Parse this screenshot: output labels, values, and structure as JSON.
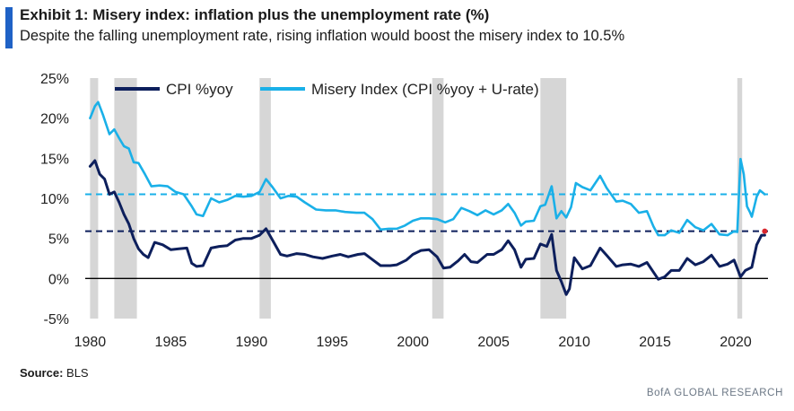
{
  "header": {
    "title": "Exhibit 1: Misery index: inflation plus the unemployment rate (%)",
    "subtitle": "Despite the falling unemployment rate, rising inflation would boost the misery index to 10.5%"
  },
  "footer": {
    "source_label": "Source:",
    "source_value": "BLS",
    "brand": "BofA GLOBAL RESEARCH"
  },
  "colors": {
    "cpi": "#0d1f5c",
    "misery": "#1ab0e8",
    "recession": "#d6d6d6",
    "accent": "#1f62c6",
    "endpoint": "#d9272e"
  },
  "chart_data": {
    "type": "line",
    "title": "Misery index: inflation plus the unemployment rate (%)",
    "xlim": [
      1979.7,
      2022.0
    ],
    "ylim": [
      -5,
      25
    ],
    "x_ticks": [
      1980,
      1985,
      1990,
      1995,
      2000,
      2005,
      2010,
      2015,
      2020
    ],
    "y_ticks": [
      -5,
      0,
      5,
      10,
      15,
      20,
      25
    ],
    "y_tick_labels": [
      "-5%",
      "0%",
      "5%",
      "10%",
      "15%",
      "20%",
      "25%"
    ],
    "legend": {
      "position": "top-left",
      "entries": [
        "CPI %yoy",
        "Misery Index (CPI %yoy + U-rate)"
      ]
    },
    "reference_lines": [
      {
        "y": 10.5,
        "style": "dashed",
        "series": "Misery Index (CPI %yoy + U-rate)"
      },
      {
        "y": 5.9,
        "style": "dashed",
        "series": "CPI %yoy"
      },
      {
        "y": 0,
        "style": "solid"
      }
    ],
    "recessions": [
      [
        1980.0,
        1980.5
      ],
      [
        1981.5,
        1982.9
      ],
      [
        1990.5,
        1991.2
      ],
      [
        2001.2,
        2001.9
      ],
      [
        2007.9,
        2009.5
      ],
      [
        2020.1,
        2020.4
      ]
    ],
    "series": [
      {
        "name": "CPI %yoy",
        "points": [
          [
            1980.0,
            14.0
          ],
          [
            1980.3,
            14.7
          ],
          [
            1980.6,
            13.0
          ],
          [
            1980.9,
            12.4
          ],
          [
            1981.2,
            10.5
          ],
          [
            1981.5,
            10.8
          ],
          [
            1981.8,
            9.5
          ],
          [
            1982.1,
            8.0
          ],
          [
            1982.4,
            6.8
          ],
          [
            1982.7,
            5.0
          ],
          [
            1983.0,
            3.7
          ],
          [
            1983.3,
            3.0
          ],
          [
            1983.6,
            2.6
          ],
          [
            1984.0,
            4.5
          ],
          [
            1984.5,
            4.2
          ],
          [
            1985.0,
            3.6
          ],
          [
            1985.5,
            3.7
          ],
          [
            1986.0,
            3.8
          ],
          [
            1986.3,
            1.9
          ],
          [
            1986.6,
            1.5
          ],
          [
            1987.0,
            1.6
          ],
          [
            1987.5,
            3.8
          ],
          [
            1988.0,
            4.0
          ],
          [
            1988.5,
            4.1
          ],
          [
            1989.0,
            4.8
          ],
          [
            1989.5,
            5.0
          ],
          [
            1990.0,
            5.0
          ],
          [
            1990.5,
            5.4
          ],
          [
            1990.9,
            6.2
          ],
          [
            1991.3,
            4.8
          ],
          [
            1991.8,
            3.0
          ],
          [
            1992.2,
            2.8
          ],
          [
            1992.8,
            3.1
          ],
          [
            1993.3,
            3.0
          ],
          [
            1993.8,
            2.7
          ],
          [
            1994.4,
            2.5
          ],
          [
            1995.0,
            2.8
          ],
          [
            1995.5,
            3.0
          ],
          [
            1996.0,
            2.7
          ],
          [
            1996.6,
            3.0
          ],
          [
            1997.0,
            3.1
          ],
          [
            1997.6,
            2.2
          ],
          [
            1998.0,
            1.6
          ],
          [
            1998.6,
            1.6
          ],
          [
            1999.0,
            1.7
          ],
          [
            1999.6,
            2.3
          ],
          [
            2000.0,
            3.0
          ],
          [
            2000.5,
            3.5
          ],
          [
            2001.0,
            3.6
          ],
          [
            2001.5,
            2.7
          ],
          [
            2001.9,
            1.3
          ],
          [
            2002.3,
            1.4
          ],
          [
            2002.8,
            2.2
          ],
          [
            2003.2,
            3.0
          ],
          [
            2003.6,
            2.1
          ],
          [
            2004.0,
            2.0
          ],
          [
            2004.6,
            3.0
          ],
          [
            2005.0,
            3.0
          ],
          [
            2005.5,
            3.6
          ],
          [
            2005.9,
            4.7
          ],
          [
            2006.3,
            3.6
          ],
          [
            2006.7,
            1.4
          ],
          [
            2007.0,
            2.4
          ],
          [
            2007.5,
            2.5
          ],
          [
            2007.9,
            4.3
          ],
          [
            2008.3,
            4.0
          ],
          [
            2008.6,
            5.5
          ],
          [
            2008.9,
            1.0
          ],
          [
            2009.2,
            -0.4
          ],
          [
            2009.5,
            -2.0
          ],
          [
            2009.7,
            -1.3
          ],
          [
            2010.0,
            2.6
          ],
          [
            2010.5,
            1.2
          ],
          [
            2011.0,
            1.6
          ],
          [
            2011.6,
            3.8
          ],
          [
            2012.0,
            2.9
          ],
          [
            2012.6,
            1.5
          ],
          [
            2013.0,
            1.7
          ],
          [
            2013.5,
            1.8
          ],
          [
            2014.0,
            1.5
          ],
          [
            2014.5,
            2.0
          ],
          [
            2014.9,
            0.8
          ],
          [
            2015.2,
            -0.1
          ],
          [
            2015.6,
            0.2
          ],
          [
            2016.0,
            1.0
          ],
          [
            2016.5,
            1.0
          ],
          [
            2017.0,
            2.5
          ],
          [
            2017.5,
            1.7
          ],
          [
            2018.0,
            2.1
          ],
          [
            2018.5,
            2.9
          ],
          [
            2019.0,
            1.5
          ],
          [
            2019.5,
            1.8
          ],
          [
            2019.9,
            2.3
          ],
          [
            2020.3,
            0.2
          ],
          [
            2020.6,
            1.0
          ],
          [
            2021.0,
            1.4
          ],
          [
            2021.3,
            4.2
          ],
          [
            2021.6,
            5.4
          ],
          [
            2021.8,
            5.4
          ]
        ]
      },
      {
        "name": "Misery Index (CPI %yoy + U-rate)",
        "points": [
          [
            1980.0,
            20.0
          ],
          [
            1980.3,
            21.5
          ],
          [
            1980.5,
            22.0
          ],
          [
            1980.8,
            20.4
          ],
          [
            1981.2,
            18.0
          ],
          [
            1981.5,
            18.6
          ],
          [
            1981.8,
            17.5
          ],
          [
            1982.1,
            16.5
          ],
          [
            1982.4,
            16.2
          ],
          [
            1982.7,
            14.5
          ],
          [
            1983.0,
            14.4
          ],
          [
            1983.4,
            13.0
          ],
          [
            1983.8,
            11.5
          ],
          [
            1984.3,
            11.6
          ],
          [
            1984.8,
            11.5
          ],
          [
            1985.3,
            10.8
          ],
          [
            1985.8,
            10.5
          ],
          [
            1986.3,
            9.0
          ],
          [
            1986.6,
            8.0
          ],
          [
            1987.0,
            7.8
          ],
          [
            1987.5,
            10.0
          ],
          [
            1988.0,
            9.5
          ],
          [
            1988.5,
            9.8
          ],
          [
            1989.0,
            10.3
          ],
          [
            1989.5,
            10.2
          ],
          [
            1990.0,
            10.3
          ],
          [
            1990.5,
            10.8
          ],
          [
            1990.9,
            12.4
          ],
          [
            1991.3,
            11.4
          ],
          [
            1991.8,
            10.0
          ],
          [
            1992.3,
            10.3
          ],
          [
            1992.8,
            10.2
          ],
          [
            1993.3,
            9.5
          ],
          [
            1994.0,
            8.6
          ],
          [
            1994.6,
            8.5
          ],
          [
            1995.2,
            8.5
          ],
          [
            1995.8,
            8.3
          ],
          [
            1996.5,
            8.2
          ],
          [
            1997.0,
            8.2
          ],
          [
            1997.5,
            7.4
          ],
          [
            1998.0,
            6.1
          ],
          [
            1998.5,
            6.2
          ],
          [
            1999.0,
            6.2
          ],
          [
            1999.5,
            6.6
          ],
          [
            2000.0,
            7.2
          ],
          [
            2000.5,
            7.5
          ],
          [
            2001.0,
            7.5
          ],
          [
            2001.5,
            7.4
          ],
          [
            2002.0,
            7.0
          ],
          [
            2002.5,
            7.4
          ],
          [
            2003.0,
            8.8
          ],
          [
            2003.5,
            8.4
          ],
          [
            2004.0,
            7.9
          ],
          [
            2004.5,
            8.5
          ],
          [
            2005.0,
            8.0
          ],
          [
            2005.5,
            8.5
          ],
          [
            2005.9,
            9.3
          ],
          [
            2006.3,
            8.2
          ],
          [
            2006.7,
            6.6
          ],
          [
            2007.0,
            7.1
          ],
          [
            2007.5,
            7.2
          ],
          [
            2007.9,
            9.0
          ],
          [
            2008.2,
            9.2
          ],
          [
            2008.6,
            11.5
          ],
          [
            2008.9,
            7.5
          ],
          [
            2009.2,
            8.4
          ],
          [
            2009.5,
            7.6
          ],
          [
            2009.8,
            8.9
          ],
          [
            2010.1,
            11.9
          ],
          [
            2010.5,
            11.4
          ],
          [
            2011.0,
            11.0
          ],
          [
            2011.6,
            12.8
          ],
          [
            2012.0,
            11.3
          ],
          [
            2012.6,
            9.6
          ],
          [
            2013.0,
            9.7
          ],
          [
            2013.5,
            9.3
          ],
          [
            2014.0,
            8.2
          ],
          [
            2014.5,
            8.4
          ],
          [
            2014.9,
            6.5
          ],
          [
            2015.2,
            5.4
          ],
          [
            2015.6,
            5.4
          ],
          [
            2016.0,
            6.0
          ],
          [
            2016.5,
            5.7
          ],
          [
            2017.0,
            7.3
          ],
          [
            2017.5,
            6.4
          ],
          [
            2018.0,
            6.0
          ],
          [
            2018.5,
            6.8
          ],
          [
            2019.0,
            5.5
          ],
          [
            2019.5,
            5.4
          ],
          [
            2019.9,
            5.9
          ],
          [
            2020.1,
            5.8
          ],
          [
            2020.3,
            14.9
          ],
          [
            2020.5,
            13.0
          ],
          [
            2020.7,
            9.0
          ],
          [
            2020.9,
            8.2
          ],
          [
            2021.0,
            7.7
          ],
          [
            2021.3,
            10.2
          ],
          [
            2021.5,
            11.0
          ],
          [
            2021.8,
            10.5
          ]
        ]
      }
    ]
  }
}
